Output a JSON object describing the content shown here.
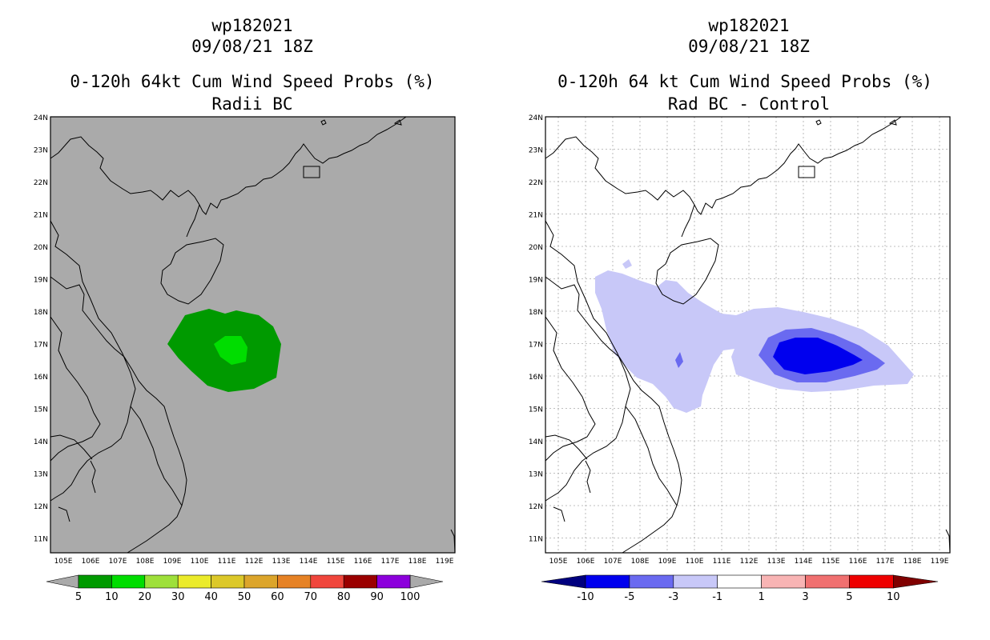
{
  "left_panel": {
    "storm_id": "wp182021",
    "datetime": "09/08/21 18Z",
    "title": "0-120h 64kt Cum Wind Speed Probs (%)",
    "subtitle": "Radii BC",
    "background_color": "#aaaaaa",
    "contours": [
      {
        "level": "5-10",
        "color": "#009a00"
      },
      {
        "level": "10-20",
        "color": "#00dd00"
      }
    ],
    "colorbar": {
      "labels": [
        "5",
        "10",
        "20",
        "30",
        "40",
        "50",
        "60",
        "70",
        "80",
        "90",
        "100"
      ],
      "colors": [
        "#009a00",
        "#00dd00",
        "#9ee03a",
        "#ebeb2a",
        "#dcc829",
        "#dca52b",
        "#e68225",
        "#f0463c",
        "#9a0000",
        "#8c00dc"
      ]
    }
  },
  "right_panel": {
    "storm_id": "wp182021",
    "datetime": "09/08/21 18Z",
    "title": "0-120h 64 kt Cum Wind Speed Probs (%)",
    "subtitle": "Rad BC - Control",
    "background_color": "#ffffff",
    "contours": [
      {
        "level": "-3 to -1",
        "color": "#c8c8f8"
      },
      {
        "level": "-5 to -3",
        "color": "#6a6af0"
      },
      {
        "level": "-10 to -5",
        "color": "#0000ee"
      }
    ],
    "colorbar": {
      "labels": [
        "-10",
        "-5",
        "-3",
        "-1",
        "1",
        "3",
        "5",
        "10"
      ],
      "colors": [
        "#0000ee",
        "#6a6af0",
        "#c8c8f8",
        "#ffffff",
        "#f8b4b4",
        "#f07070",
        "#ee0000"
      ],
      "low_end_color": "#00007f",
      "high_end_color": "#800000"
    }
  },
  "axes": {
    "lat_labels": [
      "24N",
      "23N",
      "22N",
      "21N",
      "20N",
      "19N",
      "18N",
      "17N",
      "16N",
      "15N",
      "14N",
      "13N",
      "12N",
      "11N"
    ],
    "lon_labels": [
      "105E",
      "106E",
      "107E",
      "108E",
      "109E",
      "110E",
      "111E",
      "112E",
      "113E",
      "114E",
      "115E",
      "116E",
      "117E",
      "118E",
      "119E"
    ]
  }
}
